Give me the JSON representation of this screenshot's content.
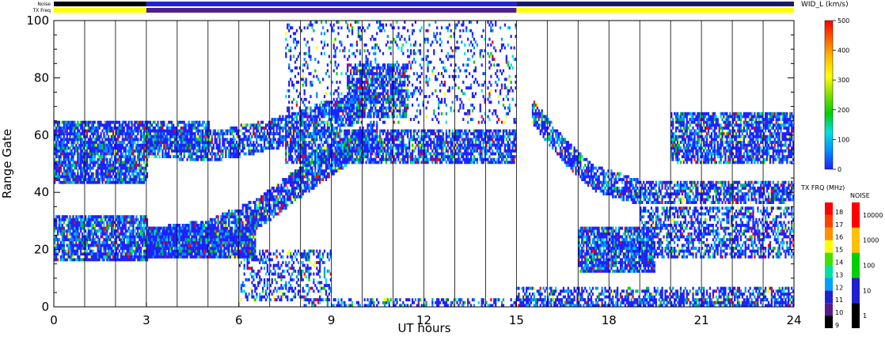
{
  "chart_data": {
    "type": "heatmap",
    "title": "",
    "xlabel": "UT hours",
    "ylabel": "Range Gate",
    "xlim": [
      0,
      24
    ],
    "ylim": [
      0,
      100
    ],
    "x_ticks": [
      0,
      3,
      6,
      9,
      12,
      15,
      18,
      21,
      24
    ],
    "y_ticks": [
      0,
      20,
      40,
      60,
      80,
      100
    ],
    "grid_x_hours": [
      1,
      2,
      3,
      4,
      5,
      6,
      7,
      8,
      9,
      10,
      11,
      12,
      13,
      14,
      15,
      16,
      17,
      18,
      19,
      20,
      21,
      22,
      23
    ],
    "header_rows": [
      {
        "label": "Noise",
        "segments": [
          {
            "from": 0,
            "to": 3,
            "color": "#000000"
          },
          {
            "from": 3,
            "to": 15,
            "color": "#2222d8"
          },
          {
            "from": 15,
            "to": 24,
            "color": "#1a1a6a"
          }
        ]
      },
      {
        "label": "TX Freq",
        "segments": [
          {
            "from": 0,
            "to": 3,
            "color": "#ffff00"
          },
          {
            "from": 3,
            "to": 15,
            "color": "#4b1f8c"
          },
          {
            "from": 15,
            "to": 24,
            "color": "#ffff00"
          }
        ]
      }
    ],
    "features": [
      {
        "kind": "band",
        "from": 0,
        "to": 3,
        "lo": 43,
        "hi": 65,
        "density": 0.85
      },
      {
        "kind": "band",
        "from": 0,
        "to": 3,
        "lo": 16,
        "hi": 32,
        "density": 0.85
      },
      {
        "kind": "band",
        "from": 3,
        "to": 6.5,
        "lo": 17,
        "hi": 28,
        "density": 0.95
      },
      {
        "kind": "band",
        "from": 3,
        "to": 5,
        "lo": 55,
        "hi": 65,
        "density": 0.7
      },
      {
        "kind": "arc",
        "points": [
          [
            3,
            22
          ],
          [
            5,
            25
          ],
          [
            6.5,
            32
          ],
          [
            8,
            44
          ],
          [
            9.5,
            55
          ],
          [
            10.5,
            60
          ]
        ],
        "width": 5,
        "density": 0.8
      },
      {
        "kind": "arc",
        "points": [
          [
            3,
            58
          ],
          [
            5,
            56
          ],
          [
            7,
            60
          ],
          [
            9,
            67
          ],
          [
            10,
            70
          ]
        ],
        "width": 5,
        "density": 0.7
      },
      {
        "kind": "band",
        "from": 7.5,
        "to": 15,
        "lo": 50,
        "hi": 62,
        "density": 0.75
      },
      {
        "kind": "band",
        "from": 9.5,
        "to": 11.5,
        "lo": 66,
        "hi": 85,
        "density": 0.7
      },
      {
        "kind": "arc",
        "points": [
          [
            15.5,
            68
          ],
          [
            16.5,
            55
          ],
          [
            17.5,
            45
          ],
          [
            19,
            40
          ],
          [
            24,
            40
          ]
        ],
        "width": 4,
        "density": 0.7
      },
      {
        "kind": "band",
        "from": 17,
        "to": 19.5,
        "lo": 12,
        "hi": 28,
        "density": 0.85
      },
      {
        "kind": "band",
        "from": 19,
        "to": 24,
        "lo": 17,
        "hi": 35,
        "density": 0.55
      },
      {
        "kind": "band",
        "from": 20,
        "to": 24,
        "lo": 50,
        "hi": 68,
        "density": 0.75
      },
      {
        "kind": "band",
        "from": 6,
        "to": 9,
        "lo": 2,
        "hi": 20,
        "density": 0.35
      },
      {
        "kind": "band",
        "from": 7.5,
        "to": 15,
        "lo": 64,
        "hi": 100,
        "density": 0.18
      },
      {
        "kind": "band",
        "from": 8,
        "to": 24,
        "lo": 0,
        "hi": 3,
        "density": 0.45
      },
      {
        "kind": "band",
        "from": 15,
        "to": 24,
        "lo": 0,
        "hi": 7,
        "density": 0.5
      }
    ]
  },
  "colorbars": {
    "velocity": {
      "title": "WID_L (km/s)",
      "ticks": [
        "0",
        "100",
        "200",
        "300",
        "400",
        "500"
      ],
      "stops": [
        "#2020ff",
        "#0090ff",
        "#00e0e0",
        "#00d000",
        "#80e000",
        "#ffff00",
        "#ffc000",
        "#ff6000",
        "#ff0000"
      ]
    },
    "tx_freq": {
      "title": "TX FRQ (MHz)",
      "ticks": [
        "9",
        "10",
        "11",
        "12",
        "13",
        "14",
        "15",
        "16",
        "17",
        "18"
      ],
      "colors": [
        "#000000",
        "#5a1a8a",
        "#2020d0",
        "#00a0ff",
        "#00e0a0",
        "#40e000",
        "#ffff00",
        "#ff9000",
        "#ff4000",
        "#ff0000"
      ]
    },
    "noise": {
      "title": "NOISE",
      "ticks": [
        "1",
        "10",
        "100",
        "1000",
        "10000"
      ],
      "colors": [
        "#000000",
        "#2020d0",
        "#00d000",
        "#ffc000",
        "#ff0000"
      ]
    }
  }
}
